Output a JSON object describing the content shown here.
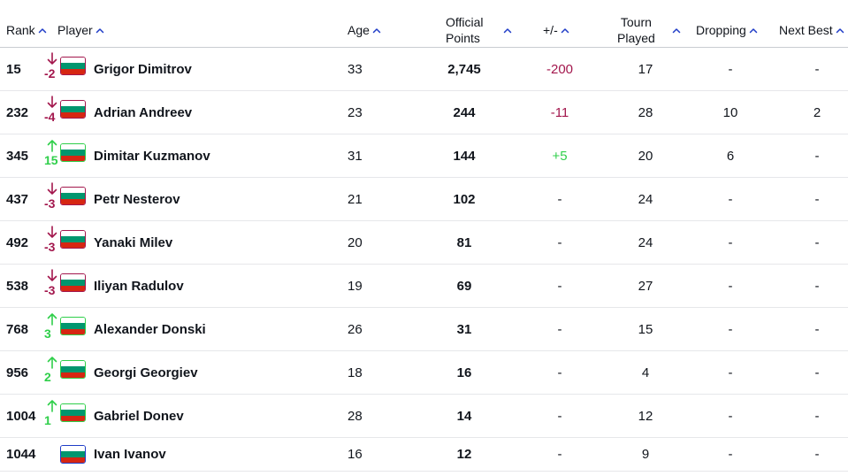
{
  "headers": {
    "rank": "Rank",
    "player": "Player",
    "age": "Age",
    "points_line1": "Official",
    "points_line2": "Points",
    "plusminus": "+/-",
    "tourn_line1": "Tourn",
    "tourn_line2": "Played",
    "dropping": "Dropping",
    "next_best": "Next Best"
  },
  "colors": {
    "down": "#a3174d",
    "up": "#2fcf4a",
    "sort_arrow": "#1f3cc7"
  },
  "rows": [
    {
      "rank": "15",
      "dir": "down",
      "move": "-2",
      "player": "Grigor Dimitrov",
      "age": "33",
      "points": "2,745",
      "plusminus": "-200",
      "pm_type": "neg",
      "tourn": "17",
      "dropping": "-",
      "next_best": "-"
    },
    {
      "rank": "232",
      "dir": "down",
      "move": "-4",
      "player": "Adrian Andreev",
      "age": "23",
      "points": "244",
      "plusminus": "-11",
      "pm_type": "neg",
      "tourn": "28",
      "dropping": "10",
      "next_best": "2"
    },
    {
      "rank": "345",
      "dir": "up",
      "move": "15",
      "player": "Dimitar Kuzmanov",
      "age": "31",
      "points": "144",
      "plusminus": "+5",
      "pm_type": "pos",
      "tourn": "20",
      "dropping": "6",
      "next_best": "-"
    },
    {
      "rank": "437",
      "dir": "down",
      "move": "-3",
      "player": "Petr Nesterov",
      "age": "21",
      "points": "102",
      "plusminus": "-",
      "pm_type": "none",
      "tourn": "24",
      "dropping": "-",
      "next_best": "-"
    },
    {
      "rank": "492",
      "dir": "down",
      "move": "-3",
      "player": "Yanaki Milev",
      "age": "20",
      "points": "81",
      "plusminus": "-",
      "pm_type": "none",
      "tourn": "24",
      "dropping": "-",
      "next_best": "-"
    },
    {
      "rank": "538",
      "dir": "down",
      "move": "-3",
      "player": "Iliyan Radulov",
      "age": "19",
      "points": "69",
      "plusminus": "-",
      "pm_type": "none",
      "tourn": "27",
      "dropping": "-",
      "next_best": "-"
    },
    {
      "rank": "768",
      "dir": "up",
      "move": "3",
      "player": "Alexander Donski",
      "age": "26",
      "points": "31",
      "plusminus": "-",
      "pm_type": "none",
      "tourn": "15",
      "dropping": "-",
      "next_best": "-"
    },
    {
      "rank": "956",
      "dir": "up",
      "move": "2",
      "player": "Georgi Georgiev",
      "age": "18",
      "points": "16",
      "plusminus": "-",
      "pm_type": "none",
      "tourn": "4",
      "dropping": "-",
      "next_best": "-"
    },
    {
      "rank": "1004",
      "dir": "up",
      "move": "1",
      "player": "Gabriel Donev",
      "age": "28",
      "points": "14",
      "plusminus": "-",
      "pm_type": "none",
      "tourn": "12",
      "dropping": "-",
      "next_best": "-"
    },
    {
      "rank": "1044",
      "dir": "none",
      "move": "",
      "player": "Ivan Ivanov",
      "age": "16",
      "points": "12",
      "plusminus": "-",
      "pm_type": "none",
      "tourn": "9",
      "dropping": "-",
      "next_best": "-"
    }
  ]
}
